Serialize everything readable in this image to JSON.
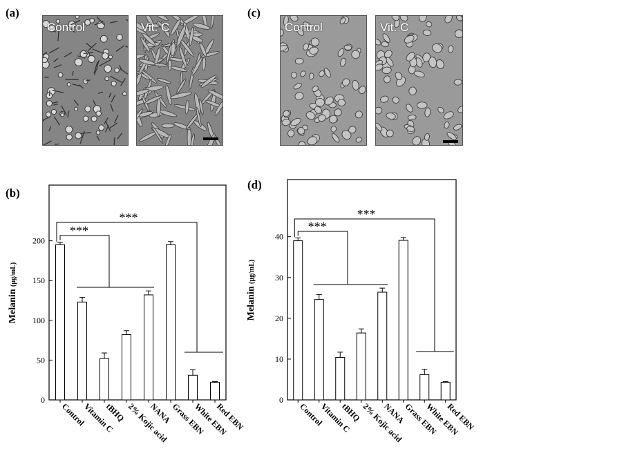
{
  "panel_labels": {
    "a": "(a)",
    "b": "(b)",
    "c": "(c)",
    "d": "(d)"
  },
  "micrographs": {
    "a": {
      "left_label": "Control",
      "right_label": "Vit. C"
    },
    "c": {
      "left_label": "Control",
      "right_label": "Vit. C"
    }
  },
  "chart_data": [
    {
      "type": "bar",
      "panel": "b",
      "categories": [
        "Control",
        "Vitamin C",
        "tBHQ",
        "2% Kojic acid",
        "NANA",
        "Grass EBN",
        "White EBN",
        "Red EBN"
      ],
      "series": [
        {
          "values": [
            195,
            123,
            52,
            82,
            132,
            195,
            31,
            22
          ],
          "errors": [
            3,
            6,
            7,
            5,
            5,
            4,
            7,
            1
          ]
        }
      ],
      "ylabel": "Melanin",
      "yunit": "(µg/mL)",
      "ylim": [
        0,
        270
      ],
      "yticks": [
        "0",
        "50",
        "100",
        "150",
        "200"
      ],
      "annotations": [
        "***",
        "***"
      ]
    },
    {
      "type": "bar",
      "panel": "d",
      "categories": [
        "Control",
        "Vitamin C",
        "tBHQ",
        "2% Kojic acid",
        "NANA",
        "Grass EBN",
        "White EBN",
        "Red EBN"
      ],
      "series": [
        {
          "values": [
            39,
            24.6,
            10.4,
            16.4,
            26.4,
            39.1,
            6.2,
            4.3
          ],
          "errors": [
            0.7,
            1.2,
            1.3,
            1.0,
            1.0,
            0.7,
            1.3,
            0.2
          ]
        }
      ],
      "ylabel": "Melanin",
      "yunit": "(µg/mL)",
      "ylim": [
        0,
        54
      ],
      "yticks": [
        "0",
        "10",
        "20",
        "30",
        "40"
      ],
      "annotations": [
        "***",
        "***"
      ]
    }
  ]
}
